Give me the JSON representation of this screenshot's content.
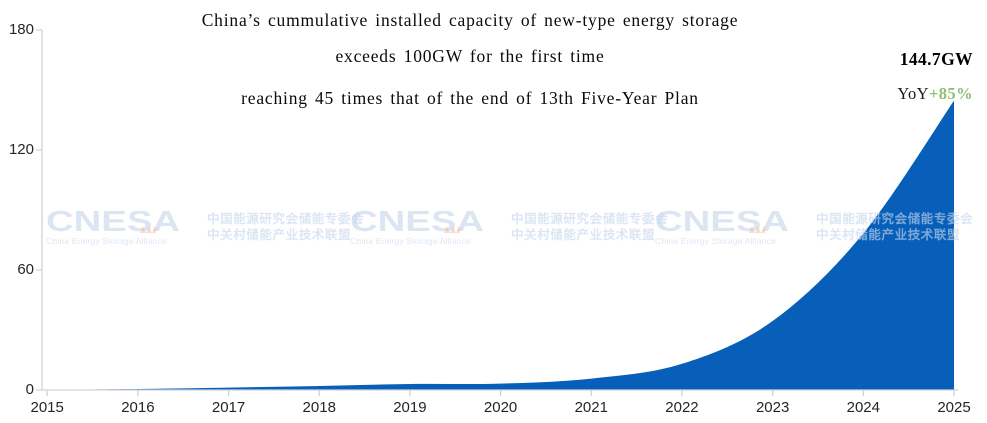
{
  "title": {
    "line1": "China’s cummulative installed capacity of new-type energy storage",
    "line2": "exceeds 100GW for the first time",
    "line3": "reaching 45 times that of the end of 13th Five-Year Plan"
  },
  "annotation": {
    "value": "144.7GW",
    "yoy_label": "YoY",
    "yoy_value": "+85%",
    "yoy_color": "#8FBF72"
  },
  "watermark": {
    "logo": "CNESA",
    "logo_sub": "China Energy Storage Alliance",
    "cn_line1": "中国能源研究会储能专委会",
    "cn_line2": "中关村储能产业技术联盟",
    "wave_color": "#F0B27E"
  },
  "chart_data": {
    "type": "area",
    "title": "China’s cummulative installed capacity of new-type energy storage exceeds 100GW for the first time, reaching 45 times that of the end of 13th Five-Year Plan",
    "x": [
      2015,
      2016,
      2017,
      2018,
      2019,
      2020,
      2021,
      2022,
      2023,
      2024,
      2025
    ],
    "values": [
      0.1,
      0.5,
      1.2,
      2.0,
      3.0,
      3.2,
      5.7,
      13.1,
      34.5,
      78.3,
      144.7
    ],
    "unit": "GW",
    "ylabel": "",
    "xlabel": "",
    "ylim": [
      0,
      180
    ],
    "yticks": [
      0,
      60,
      120,
      180
    ],
    "grid": false,
    "legend": "none",
    "smooth": true,
    "area_color": "#075FBA",
    "axis_color": "#D3D3D6"
  }
}
